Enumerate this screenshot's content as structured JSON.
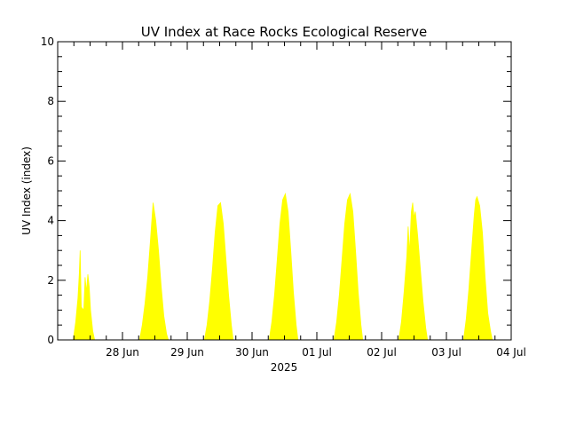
{
  "chart_data": {
    "type": "area",
    "title": "UV Index at Race Rocks Ecological Reserve",
    "xlabel": "2025",
    "ylabel": "UV Index (index)",
    "ylim": [
      0,
      10
    ],
    "y_ticks": [
      0,
      2,
      4,
      6,
      8,
      10
    ],
    "xlim": [
      "2025-06-27T00:00",
      "2025-07-04T00:00"
    ],
    "x_ticks": [
      {
        "date": "2025-06-28",
        "label": "28 Jun"
      },
      {
        "date": "2025-06-29",
        "label": "29 Jun"
      },
      {
        "date": "2025-06-30",
        "label": "30 Jun"
      },
      {
        "date": "2025-07-01",
        "label": "01 Jul"
      },
      {
        "date": "2025-07-02",
        "label": "02 Jul"
      },
      {
        "date": "2025-07-03",
        "label": "03 Jul"
      },
      {
        "date": "2025-07-04",
        "label": "04 Jul"
      }
    ],
    "grid": false,
    "fill_color": "#ffff00",
    "series": [
      {
        "values": [
          [
            "2025-06-27T05:45",
            0.0
          ],
          [
            "2025-06-27T06:40",
            0.6
          ],
          [
            "2025-06-27T07:30",
            1.4
          ],
          [
            "2025-06-27T08:00",
            2.2
          ],
          [
            "2025-06-27T08:20",
            3.0
          ],
          [
            "2025-06-27T08:45",
            1.1
          ],
          [
            "2025-06-27T09:40",
            1.0
          ],
          [
            "2025-06-27T10:10",
            2.1
          ],
          [
            "2025-06-27T10:40",
            1.6
          ],
          [
            "2025-06-27T11:10",
            2.2
          ],
          [
            "2025-06-27T11:40",
            1.8
          ],
          [
            "2025-06-27T12:10",
            1.0
          ],
          [
            "2025-06-27T13:00",
            0.3
          ],
          [
            "2025-06-27T13:40",
            0.0
          ],
          [
            "2025-06-28T06:20",
            0.0
          ],
          [
            "2025-06-28T07:20",
            0.5
          ],
          [
            "2025-06-28T08:20",
            1.2
          ],
          [
            "2025-06-28T09:20",
            2.1
          ],
          [
            "2025-06-28T10:20",
            3.3
          ],
          [
            "2025-06-28T11:20",
            4.6
          ],
          [
            "2025-06-28T12:20",
            4.0
          ],
          [
            "2025-06-28T13:20",
            3.0
          ],
          [
            "2025-06-28T14:20",
            1.8
          ],
          [
            "2025-06-28T15:20",
            0.8
          ],
          [
            "2025-06-28T16:20",
            0.2
          ],
          [
            "2025-06-28T17:00",
            0.0
          ],
          [
            "2025-06-29T06:20",
            0.0
          ],
          [
            "2025-06-29T07:20",
            0.5
          ],
          [
            "2025-06-29T08:20",
            1.3
          ],
          [
            "2025-06-29T09:20",
            2.4
          ],
          [
            "2025-06-29T10:20",
            3.6
          ],
          [
            "2025-06-29T11:20",
            4.5
          ],
          [
            "2025-06-29T12:20",
            4.6
          ],
          [
            "2025-06-29T13:20",
            3.9
          ],
          [
            "2025-06-29T14:20",
            2.7
          ],
          [
            "2025-06-29T15:20",
            1.5
          ],
          [
            "2025-06-29T16:20",
            0.5
          ],
          [
            "2025-06-29T17:00",
            0.0
          ],
          [
            "2025-06-30T06:20",
            0.0
          ],
          [
            "2025-06-30T07:20",
            0.6
          ],
          [
            "2025-06-30T08:20",
            1.5
          ],
          [
            "2025-06-30T09:20",
            2.7
          ],
          [
            "2025-06-30T10:20",
            3.9
          ],
          [
            "2025-06-30T11:20",
            4.7
          ],
          [
            "2025-06-30T12:20",
            4.9
          ],
          [
            "2025-06-30T13:20",
            4.3
          ],
          [
            "2025-06-30T14:20",
            3.0
          ],
          [
            "2025-06-30T15:20",
            1.6
          ],
          [
            "2025-06-30T16:20",
            0.5
          ],
          [
            "2025-06-30T17:00",
            0.0
          ],
          [
            "2025-07-01T06:20",
            0.0
          ],
          [
            "2025-07-01T07:20",
            0.6
          ],
          [
            "2025-07-01T08:20",
            1.5
          ],
          [
            "2025-07-01T09:20",
            2.7
          ],
          [
            "2025-07-01T10:20",
            3.9
          ],
          [
            "2025-07-01T11:20",
            4.7
          ],
          [
            "2025-07-01T12:20",
            4.9
          ],
          [
            "2025-07-01T13:20",
            4.3
          ],
          [
            "2025-07-01T14:20",
            3.0
          ],
          [
            "2025-07-01T15:20",
            1.6
          ],
          [
            "2025-07-01T16:20",
            0.5
          ],
          [
            "2025-07-01T17:00",
            0.0
          ],
          [
            "2025-07-02T06:20",
            0.0
          ],
          [
            "2025-07-02T07:20",
            0.6
          ],
          [
            "2025-07-02T08:20",
            1.6
          ],
          [
            "2025-07-02T09:20",
            2.8
          ],
          [
            "2025-07-02T09:50",
            3.8
          ],
          [
            "2025-07-02T10:20",
            2.9
          ],
          [
            "2025-07-02T11:00",
            4.3
          ],
          [
            "2025-07-02T11:30",
            4.6
          ],
          [
            "2025-07-02T12:00",
            4.1
          ],
          [
            "2025-07-02T12:30",
            4.3
          ],
          [
            "2025-07-02T13:20",
            3.5
          ],
          [
            "2025-07-02T14:20",
            2.4
          ],
          [
            "2025-07-02T15:20",
            1.3
          ],
          [
            "2025-07-02T16:20",
            0.4
          ],
          [
            "2025-07-02T17:00",
            0.0
          ],
          [
            "2025-07-03T06:20",
            0.0
          ],
          [
            "2025-07-03T07:20",
            0.7
          ],
          [
            "2025-07-03T08:20",
            1.7
          ],
          [
            "2025-07-03T09:20",
            3.0
          ],
          [
            "2025-07-03T10:20",
            4.2
          ],
          [
            "2025-07-03T10:50",
            4.7
          ],
          [
            "2025-07-03T11:20",
            4.8
          ],
          [
            "2025-07-03T12:20",
            4.5
          ],
          [
            "2025-07-03T13:20",
            3.6
          ],
          [
            "2025-07-03T14:20",
            2.1
          ],
          [
            "2025-07-03T15:20",
            0.9
          ],
          [
            "2025-07-03T16:20",
            0.3
          ],
          [
            "2025-07-03T17:00",
            0.0
          ]
        ]
      }
    ]
  }
}
